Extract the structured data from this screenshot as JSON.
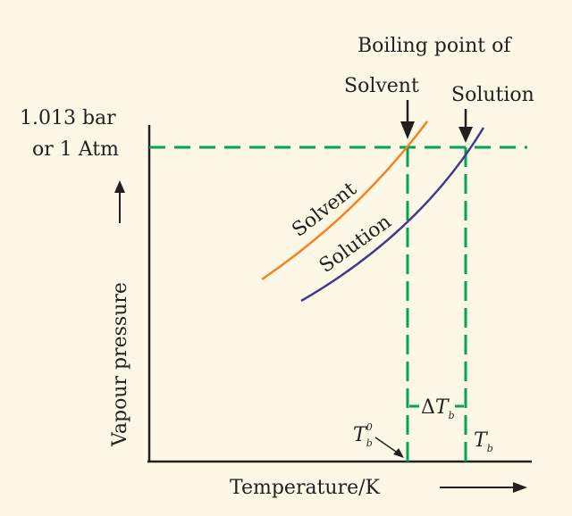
{
  "header": {
    "boiling_point_of": "Boiling point of",
    "solvent": "Solvent",
    "solution": "Solution"
  },
  "pressure": {
    "line1": "1.013 bar",
    "line2": "or  1 Atm"
  },
  "axes": {
    "y_label": "Vapour pressure",
    "x_label": "Temperature/K"
  },
  "curves": {
    "solvent": {
      "label": "Solvent",
      "color": "#f58220"
    },
    "solution": {
      "label": "Solution",
      "color": "#3f3b8f"
    }
  },
  "markers": {
    "t_b0": {
      "main": "T",
      "sub": "b",
      "sup": "0"
    },
    "t_b": {
      "main": "T",
      "sub": "b"
    },
    "delta_tb": {
      "prefix": "Δ",
      "main": "T",
      "sub": "b"
    }
  },
  "colors": {
    "guide": "#00a650",
    "axis": "#231f20",
    "background": "#fdf8e6"
  }
}
